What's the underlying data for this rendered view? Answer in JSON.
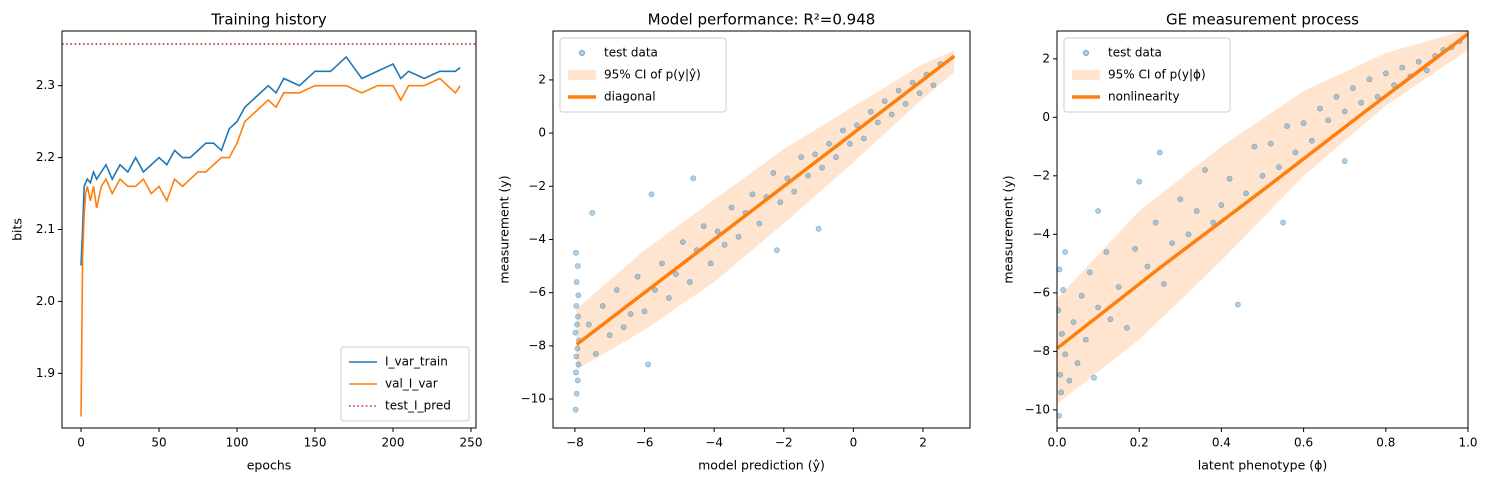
{
  "chart_data": [
    {
      "type": "line",
      "title": "Training history",
      "xlabel": "epochs",
      "ylabel": "bits",
      "x": [
        0,
        1,
        2,
        3,
        4,
        6,
        8,
        10,
        13,
        16,
        20,
        25,
        30,
        35,
        40,
        45,
        50,
        55,
        60,
        65,
        70,
        75,
        80,
        85,
        90,
        95,
        100,
        105,
        110,
        115,
        120,
        125,
        130,
        140,
        150,
        160,
        170,
        180,
        190,
        200,
        205,
        210,
        220,
        230,
        240,
        243
      ],
      "series": [
        {
          "name": "I_var_train",
          "color": "#1f77b4",
          "values": [
            2.05,
            2.1,
            2.16,
            2.165,
            2.17,
            2.165,
            2.18,
            2.17,
            2.18,
            2.19,
            2.17,
            2.19,
            2.18,
            2.2,
            2.18,
            2.19,
            2.2,
            2.19,
            2.21,
            2.2,
            2.2,
            2.21,
            2.22,
            2.22,
            2.21,
            2.24,
            2.25,
            2.27,
            2.28,
            2.29,
            2.3,
            2.29,
            2.31,
            2.3,
            2.32,
            2.32,
            2.34,
            2.31,
            2.32,
            2.33,
            2.31,
            2.32,
            2.31,
            2.32,
            2.32,
            2.325
          ]
        },
        {
          "name": "val_I_var",
          "color": "#ff7f0e",
          "values": [
            1.84,
            2.06,
            2.12,
            2.15,
            2.16,
            2.14,
            2.16,
            2.13,
            2.16,
            2.17,
            2.15,
            2.17,
            2.16,
            2.16,
            2.17,
            2.15,
            2.16,
            2.14,
            2.17,
            2.16,
            2.17,
            2.18,
            2.18,
            2.19,
            2.2,
            2.2,
            2.22,
            2.25,
            2.26,
            2.27,
            2.28,
            2.27,
            2.29,
            2.29,
            2.3,
            2.3,
            2.3,
            2.29,
            2.3,
            2.3,
            2.28,
            2.3,
            2.3,
            2.31,
            2.29,
            2.3
          ]
        }
      ],
      "reference_lines": [
        {
          "name": "test_I_pred",
          "color": "#d62728",
          "dash": "dotted",
          "value": 2.358
        }
      ],
      "legend": "lower right",
      "xlim": [
        -12.2,
        253.2
      ],
      "xticks": [
        0,
        50,
        100,
        150,
        200,
        250
      ],
      "ylim": [
        1.824,
        2.376
      ],
      "yticks": [
        1.9,
        {
          "value": 2,
          "label": "2.0"
        },
        2.1,
        2.2,
        2.3
      ]
    },
    {
      "type": "scatter",
      "title": "Model performance: R²=0.948",
      "xlabel": "model prediction (ŷ)",
      "ylabel": "measurement (y)",
      "series": [
        {
          "name": "test data",
          "style": "markers",
          "color": "#1f77b4",
          "x": [
            -7.98,
            -7.95,
            -7.92,
            -7.97,
            -7.9,
            -7.96,
            -7.93,
            -7.88,
            -7.99,
            -7.94,
            -7.91,
            -7.96,
            -7.9,
            -7.95,
            -7.92,
            -7.97,
            -7.6,
            -7.4,
            -7.2,
            -7,
            -6.8,
            -6.6,
            -6.4,
            -6.2,
            -6,
            -5.8,
            -5.7,
            -5.5,
            -5.3,
            -5.1,
            -4.9,
            -4.7,
            -4.5,
            -4.3,
            -4.1,
            -3.9,
            -3.7,
            -3.5,
            -3.3,
            -3.1,
            -2.9,
            -2.7,
            -2.5,
            -2.3,
            -2.1,
            -1.9,
            -1.7,
            -1.5,
            -1.3,
            -1.1,
            -0.9,
            -0.7,
            -0.5,
            -0.3,
            -0.1,
            0.1,
            0.3,
            0.5,
            0.7,
            0.9,
            1.1,
            1.3,
            1.5,
            1.7,
            1.9,
            2.1,
            2.3,
            2.5,
            -2.2,
            -5.9,
            -1,
            -7.5,
            -4.6
          ],
          "values": [
            -10.4,
            -9.8,
            -9.3,
            -9,
            -8.7,
            -8.4,
            -8.1,
            -7.8,
            -7.5,
            -7.2,
            -6.9,
            -6.5,
            -6.1,
            -5.6,
            -5,
            -4.5,
            -7.2,
            -8.3,
            -6.5,
            -7.6,
            -5.9,
            -7.3,
            -6.8,
            -5.4,
            -6.7,
            -2.3,
            -5.9,
            -4.9,
            -6.2,
            -5.3,
            -4.1,
            -5.6,
            -4.4,
            -3.5,
            -4.9,
            -3.7,
            -4.2,
            -2.8,
            -3.9,
            -3.0,
            -2.3,
            -3.4,
            -2.4,
            -1.5,
            -2.6,
            -1.7,
            -2.2,
            -0.9,
            -1.6,
            -0.8,
            -1.3,
            -0.4,
            -0.9,
            0.1,
            -0.4,
            0.3,
            -0.2,
            0.8,
            0.4,
            1.2,
            0.7,
            1.6,
            1.1,
            1.9,
            1.5,
            2.2,
            1.8,
            2.6,
            -4.4,
            -8.7,
            -3.6,
            -3,
            -1.7
          ]
        },
        {
          "name": "95% CI of p(y|ŷ)",
          "style": "band",
          "color": "#ff7f0e",
          "x": [
            -7.95,
            -6,
            -4,
            -2,
            0,
            2,
            2.9
          ],
          "lower": [
            -8.9,
            -7.4,
            -5.6,
            -3.4,
            -1.1,
            1.3,
            2.3
          ],
          "upper": [
            -6.6,
            -4.4,
            -2.5,
            -0.6,
            1.0,
            2.6,
            3.1
          ]
        },
        {
          "name": "diagonal",
          "style": "line",
          "color": "#ff7f0e",
          "x": [
            -7.95,
            2.9
          ],
          "values": [
            -7.95,
            2.9
          ]
        }
      ],
      "legend": "upper left",
      "xlim": [
        -8.63,
        3.35
      ],
      "xticks": [
        {
          "value": -8,
          "label": "−8"
        },
        {
          "value": -6,
          "label": "−6"
        },
        {
          "value": -4,
          "label": "−4"
        },
        {
          "value": -2,
          "label": "−2"
        },
        0,
        2
      ],
      "ylim": [
        -11.09,
        3.84
      ],
      "yticks": [
        {
          "value": -10,
          "label": "−10"
        },
        {
          "value": -8,
          "label": "−8"
        },
        {
          "value": -6,
          "label": "−6"
        },
        {
          "value": -4,
          "label": "−4"
        },
        {
          "value": -2,
          "label": "−2"
        },
        0,
        2
      ]
    },
    {
      "type": "scatter",
      "title": "GE measurement process",
      "xlabel": "latent phenotype (ϕ)",
      "ylabel": "measurement (y)",
      "series": [
        {
          "name": "test data",
          "style": "markers",
          "color": "#1f77b4",
          "x": [
            0.005,
            0.01,
            0.008,
            0.02,
            0.012,
            0.003,
            0.015,
            0.006,
            0.02,
            0.03,
            0.04,
            0.05,
            0.06,
            0.07,
            0.08,
            0.09,
            0.1,
            0.12,
            0.13,
            0.15,
            0.17,
            0.19,
            0.2,
            0.22,
            0.24,
            0.26,
            0.28,
            0.3,
            0.32,
            0.34,
            0.36,
            0.38,
            0.4,
            0.42,
            0.44,
            0.46,
            0.48,
            0.5,
            0.52,
            0.54,
            0.56,
            0.58,
            0.6,
            0.62,
            0.64,
            0.66,
            0.68,
            0.7,
            0.72,
            0.74,
            0.76,
            0.78,
            0.8,
            0.82,
            0.84,
            0.86,
            0.88,
            0.9,
            0.92,
            0.94,
            0.96,
            0.98,
            0.25,
            0.1,
            0.55,
            0.7
          ],
          "values": [
            -10.2,
            -9.4,
            -8.8,
            -8.1,
            -7.4,
            -6.6,
            -5.9,
            -5.2,
            -4.6,
            -9.0,
            -7.0,
            -8.4,
            -6.1,
            -7.6,
            -5.3,
            -8.9,
            -6.5,
            -4.6,
            -6.9,
            -5.8,
            -7.2,
            -4.5,
            -2.2,
            -5.1,
            -3.6,
            -5.7,
            -4.3,
            -2.8,
            -4.0,
            -3.2,
            -1.8,
            -3.6,
            -3.0,
            -2.1,
            -6.4,
            -2.6,
            -1.0,
            -2.0,
            -0.9,
            -1.7,
            -0.3,
            -1.2,
            -0.2,
            -0.8,
            0.3,
            -0.1,
            0.7,
            0.2,
            1.0,
            0.5,
            1.3,
            0.7,
            1.5,
            1.1,
            1.7,
            1.4,
            1.9,
            1.6,
            2.1,
            2.3,
            2.4,
            2.6,
            -1.2,
            -3.2,
            -3.6,
            -1.5
          ]
        },
        {
          "name": "95% CI of p(y|ϕ)",
          "style": "band",
          "color": "#ff7f0e",
          "x": [
            0,
            0.2,
            0.4,
            0.6,
            0.8,
            1
          ],
          "lower": [
            -9.8,
            -7.6,
            -4.9,
            -2.0,
            0.4,
            2.3
          ],
          "upper": [
            -6.2,
            -3.2,
            -1.0,
            0.9,
            2.2,
            3.0
          ]
        },
        {
          "name": "nonlinearity",
          "style": "line",
          "color": "#ff7f0e",
          "x": [
            0,
            0.25,
            0.5,
            0.75,
            1
          ],
          "values": [
            -7.9,
            -5.15,
            -2.5,
            0.2,
            2.85
          ]
        }
      ],
      "legend": "upper left",
      "xlim": [
        0,
        1
      ],
      "xticks": [
        {
          "value": 0,
          "label": "0.0"
        },
        0.2,
        0.4,
        0.6,
        0.8,
        {
          "value": 1,
          "label": "1.0"
        }
      ],
      "ylim": [
        -10.62,
        2.95
      ],
      "yticks": [
        {
          "value": -10,
          "label": "−10"
        },
        {
          "value": -8,
          "label": "−8"
        },
        {
          "value": -6,
          "label": "−6"
        },
        {
          "value": -4,
          "label": "−4"
        },
        {
          "value": -2,
          "label": "−2"
        },
        0,
        2
      ]
    }
  ]
}
